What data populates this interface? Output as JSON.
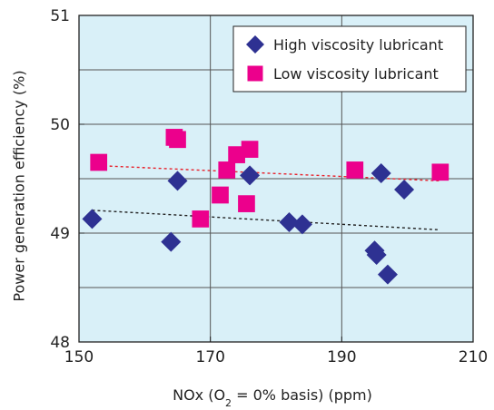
{
  "chart_data": {
    "type": "scatter",
    "xlabel": "NOx (O₂ = 0% basis) (ppm)",
    "xlabel_parts": {
      "pre": "NOx (O",
      "sub": "2",
      "post": " = 0% basis) (ppm)"
    },
    "ylabel": "Power generation efficiency (%)",
    "xlim": [
      150,
      210
    ],
    "ylim": [
      48,
      51
    ],
    "xticks": [
      150,
      170,
      190,
      210
    ],
    "yticks": [
      48,
      49,
      50,
      51
    ],
    "grid": true,
    "legend_position": "top-right",
    "plot_background": "#d9f0f8",
    "series": [
      {
        "name": "High viscosity lubricant",
        "marker": "diamond",
        "color": "#2e3192",
        "points": [
          [
            152.0,
            49.13
          ],
          [
            164.0,
            48.92
          ],
          [
            165.0,
            49.48
          ],
          [
            176.0,
            49.53
          ],
          [
            182.0,
            49.1
          ],
          [
            184.0,
            49.08
          ],
          [
            195.0,
            48.84
          ],
          [
            195.3,
            48.8
          ],
          [
            196.0,
            49.55
          ],
          [
            197.0,
            48.62
          ],
          [
            199.5,
            49.4
          ]
        ],
        "trend": {
          "x": [
            152,
            205
          ],
          "y": [
            49.21,
            49.03
          ],
          "color": "#222222"
        }
      },
      {
        "name": "Low viscosity lubricant",
        "marker": "square",
        "color": "#ec008c",
        "points": [
          [
            153.0,
            49.65
          ],
          [
            164.5,
            49.88
          ],
          [
            165.0,
            49.86
          ],
          [
            168.5,
            49.13
          ],
          [
            171.5,
            49.35
          ],
          [
            172.5,
            49.58
          ],
          [
            174.0,
            49.72
          ],
          [
            175.5,
            49.27
          ],
          [
            176.0,
            49.77
          ],
          [
            192.0,
            49.58
          ],
          [
            205.0,
            49.56
          ]
        ],
        "trend": {
          "x": [
            153,
            205
          ],
          "y": [
            49.62,
            49.48
          ],
          "color": "#e8202a"
        }
      }
    ]
  }
}
